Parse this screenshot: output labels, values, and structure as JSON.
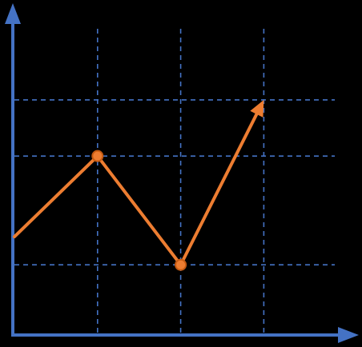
{
  "chart_data": {
    "type": "line",
    "title": "",
    "xlabel": "",
    "ylabel": "",
    "x": [
      0,
      1,
      2,
      3
    ],
    "y": [
      1.1,
      2.25,
      0.7,
      3.05
    ],
    "marked_points": [
      1,
      2
    ],
    "end_arrow": true,
    "grid": true,
    "grid_x": [
      1,
      2,
      3
    ],
    "grid_y": [
      0.7,
      2.25,
      3.05
    ],
    "xlim": [
      0,
      3.95
    ],
    "ylim": [
      -0.3,
      4.2
    ],
    "colors": {
      "background": "#000000",
      "axis": "#4472C4",
      "grid": "#4472C4",
      "line": "#ED7D31",
      "marker_fill": "#ED7D31",
      "marker_stroke": "#C55A11"
    }
  }
}
